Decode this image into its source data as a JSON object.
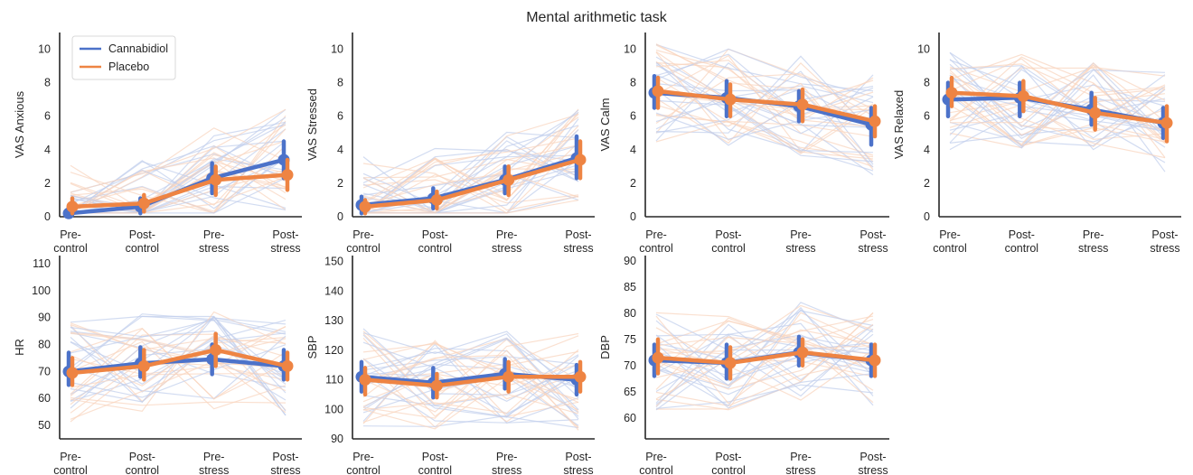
{
  "figure": {
    "title": "Mental arithmetic task",
    "colors": {
      "Cannabidiol": "#4c72c9",
      "Placebo": "#ee8443"
    },
    "legend": {
      "position": "top-left",
      "entries": [
        "Cannabidiol",
        "Placebo"
      ]
    }
  },
  "chart_data": [
    {
      "type": "line",
      "ylabel": "VAS Anxious",
      "categories": [
        "Pre-\ncontrol",
        "Post-\ncontrol",
        "Pre-\nstress",
        "Post-\nstress"
      ],
      "ylim": [
        0,
        11
      ],
      "yticks": [
        0,
        2,
        4,
        6,
        8,
        10
      ],
      "series": [
        {
          "name": "Cannabidiol",
          "values": [
            0.2,
            0.6,
            2.3,
            3.4
          ],
          "ci": [
            [
              0,
              0.6
            ],
            [
              0.2,
              1.1
            ],
            [
              1.4,
              3.2
            ],
            [
              2.3,
              4.5
            ]
          ]
        },
        {
          "name": "Placebo",
          "values": [
            0.6,
            0.8,
            2.2,
            2.5
          ],
          "ci": [
            [
              0.2,
              1.1
            ],
            [
              0.3,
              1.3
            ],
            [
              1.3,
              3.0
            ],
            [
              1.6,
              3.4
            ]
          ]
        }
      ]
    },
    {
      "type": "line",
      "ylabel": "VAS Stressed",
      "categories": [
        "Pre-\ncontrol",
        "Post-\ncontrol",
        "Pre-\nstress",
        "Post-\nstress"
      ],
      "ylim": [
        0,
        11
      ],
      "yticks": [
        0,
        2,
        4,
        6,
        8,
        10
      ],
      "series": [
        {
          "name": "Cannabidiol",
          "values": [
            0.7,
            1.1,
            2.2,
            3.5
          ],
          "ci": [
            [
              0.2,
              1.2
            ],
            [
              0.5,
              1.7
            ],
            [
              1.4,
              3.0
            ],
            [
              2.3,
              4.8
            ]
          ]
        },
        {
          "name": "Placebo",
          "values": [
            0.6,
            1.0,
            2.2,
            3.4
          ],
          "ci": [
            [
              0.2,
              1.0
            ],
            [
              0.5,
              1.5
            ],
            [
              1.3,
              3.0
            ],
            [
              2.3,
              4.5
            ]
          ]
        }
      ]
    },
    {
      "type": "line",
      "ylabel": "VAS Calm",
      "categories": [
        "Pre-\ncontrol",
        "Post-\ncontrol",
        "Pre-\nstress",
        "Post-\nstress"
      ],
      "ylim": [
        0,
        11
      ],
      "yticks": [
        0,
        2,
        4,
        6,
        8,
        10
      ],
      "series": [
        {
          "name": "Cannabidiol",
          "values": [
            7.4,
            7.1,
            6.6,
            5.5
          ],
          "ci": [
            [
              6.5,
              8.4
            ],
            [
              6.0,
              8.1
            ],
            [
              5.7,
              7.5
            ],
            [
              4.3,
              6.5
            ]
          ]
        },
        {
          "name": "Placebo",
          "values": [
            7.5,
            7.0,
            6.7,
            5.7
          ],
          "ci": [
            [
              6.5,
              8.3
            ],
            [
              6.0,
              7.9
            ],
            [
              5.7,
              7.6
            ],
            [
              4.8,
              6.6
            ]
          ]
        }
      ]
    },
    {
      "type": "line",
      "ylabel": "VAS Relaxed",
      "categories": [
        "Pre-\ncontrol",
        "Post-\ncontrol",
        "Pre-\nstress",
        "Post-\nstress"
      ],
      "ylim": [
        0,
        11
      ],
      "yticks": [
        0,
        2,
        4,
        6,
        8,
        10
      ],
      "series": [
        {
          "name": "Cannabidiol",
          "values": [
            7.0,
            7.1,
            6.4,
            5.6
          ],
          "ci": [
            [
              6.0,
              8.0
            ],
            [
              6.0,
              8.0
            ],
            [
              5.5,
              7.4
            ],
            [
              4.7,
              6.5
            ]
          ]
        },
        {
          "name": "Placebo",
          "values": [
            7.4,
            7.2,
            6.2,
            5.6
          ],
          "ci": [
            [
              6.6,
              8.3
            ],
            [
              6.3,
              8.1
            ],
            [
              5.2,
              7.1
            ],
            [
              4.5,
              6.6
            ]
          ]
        }
      ]
    },
    {
      "type": "line",
      "ylabel": "HR",
      "categories": [
        "Pre-\ncontrol",
        "Post-\ncontrol",
        "Pre-\nstress",
        "Post-\nstress"
      ],
      "ylim": [
        45,
        113
      ],
      "yticks": [
        50,
        60,
        70,
        80,
        90,
        100,
        110
      ],
      "series": [
        {
          "name": "Cannabidiol",
          "values": [
            70,
            73,
            74.5,
            72
          ],
          "ci": [
            [
              65,
              77
            ],
            [
              68,
              79
            ],
            [
              69,
              80
            ],
            [
              67,
              78
            ]
          ]
        },
        {
          "name": "Placebo",
          "values": [
            69.5,
            72,
            78,
            72
          ],
          "ci": [
            [
              65,
              75
            ],
            [
              67,
              78
            ],
            [
              72,
              84
            ],
            [
              67,
              77
            ]
          ]
        }
      ]
    },
    {
      "type": "line",
      "ylabel": "SBP",
      "categories": [
        "Pre-\ncontrol",
        "Post-\ncontrol",
        "Pre-\nstress",
        "Post-\nstress"
      ],
      "ylim": [
        90,
        152
      ],
      "yticks": [
        90,
        100,
        110,
        120,
        130,
        140,
        150
      ],
      "series": [
        {
          "name": "Cannabidiol",
          "values": [
            111,
            109,
            112,
            110
          ],
          "ci": [
            [
              106,
              116
            ],
            [
              104,
              114
            ],
            [
              107,
              117
            ],
            [
              105,
              115
            ]
          ]
        },
        {
          "name": "Placebo",
          "values": [
            110,
            108,
            111,
            111
          ],
          "ci": [
            [
              105,
              114
            ],
            [
              104,
              112
            ],
            [
              106,
              116
            ],
            [
              106,
              116
            ]
          ]
        }
      ]
    },
    {
      "type": "line",
      "ylabel": "DBP",
      "categories": [
        "Pre-\ncontrol",
        "Post-\ncontrol",
        "Pre-\nstress",
        "Post-\nstress"
      ],
      "ylim": [
        56,
        91
      ],
      "yticks": [
        60,
        65,
        70,
        75,
        80,
        85,
        90
      ],
      "series": [
        {
          "name": "Cannabidiol",
          "values": [
            71,
            70.5,
            72.5,
            71
          ],
          "ci": [
            [
              68,
              74
            ],
            [
              67.5,
              74
            ],
            [
              70,
              75.5
            ],
            [
              68,
              74
            ]
          ]
        },
        {
          "name": "Placebo",
          "values": [
            71.5,
            70.5,
            72.5,
            71
          ],
          "ci": [
            [
              68.5,
              75
            ],
            [
              67.5,
              73.5
            ],
            [
              70,
              75
            ],
            [
              68,
              74
            ]
          ]
        }
      ]
    }
  ]
}
